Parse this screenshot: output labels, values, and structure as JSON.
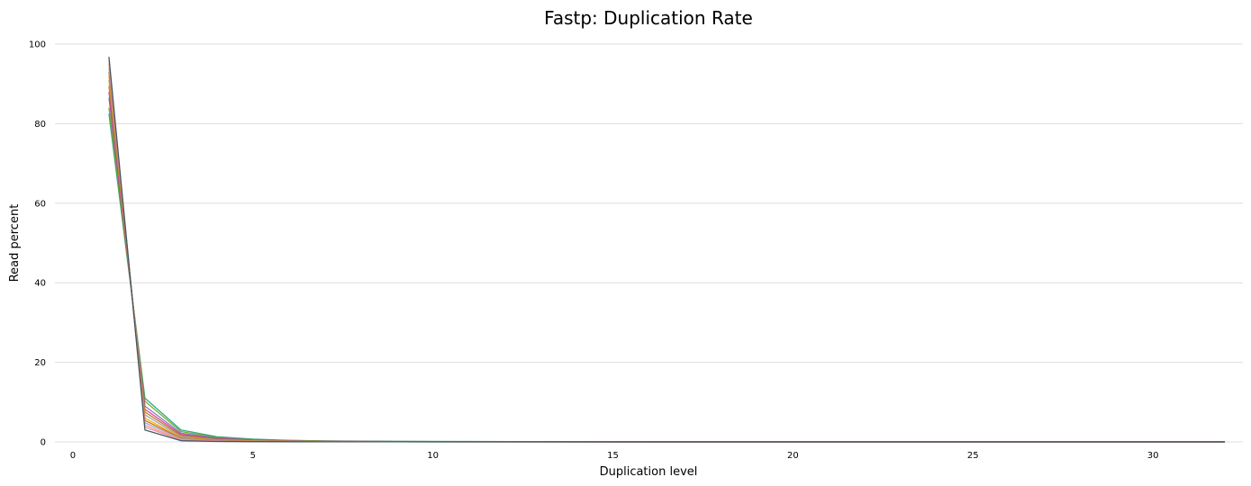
{
  "chart_data": {
    "type": "line",
    "title": "Fastp: Duplication Rate",
    "xlabel": "Duplication level",
    "ylabel": "Read percent",
    "xlim": [
      -0.5,
      32.5
    ],
    "ylim": [
      0,
      100
    ],
    "xticks": [
      0,
      5,
      10,
      15,
      20,
      25,
      30
    ],
    "yticks": [
      0,
      20,
      40,
      60,
      80,
      100
    ],
    "grid": "horizontal",
    "legend": "none",
    "x": [
      1,
      2,
      3,
      4,
      5,
      6,
      7,
      8,
      9,
      10,
      11,
      12,
      13,
      14,
      15,
      16,
      17,
      18,
      19,
      20,
      21,
      22,
      23,
      24,
      25,
      26,
      27,
      28,
      29,
      30,
      31,
      32
    ],
    "series": [
      {
        "color": "#1b9e77",
        "values": [
          82.5,
          11.0,
          3.0,
          1.3,
          0.7,
          0.4,
          0.25,
          0.18,
          0.14,
          0.12,
          0.1,
          0.08,
          0.06,
          0.04,
          0.03,
          0.02,
          0.02,
          0.01,
          0.01,
          0.01,
          0.01,
          0.01,
          0.01,
          0.01,
          0.01,
          0.01,
          0.01,
          0.01,
          0.01,
          0.01,
          0.01,
          0.01
        ]
      },
      {
        "color": "#66a61e",
        "values": [
          84.0,
          10.2,
          2.6,
          1.1,
          0.6,
          0.35,
          0.22,
          0.16,
          0.12,
          0.1,
          0.08,
          0.07,
          0.05,
          0.03,
          0.02,
          0.02,
          0.01,
          0.01,
          0.01,
          0.01,
          0.01,
          0.01,
          0.01,
          0.01,
          0.01,
          0.01,
          0.01,
          0.01,
          0.01,
          0.01,
          0.01,
          0.01
        ]
      },
      {
        "color": "#7570b3",
        "values": [
          86.5,
          9.0,
          2.2,
          0.95,
          0.5,
          0.3,
          0.18,
          0.13,
          0.1,
          0.08,
          0.07,
          0.06,
          0.04,
          0.03,
          0.02,
          0.01,
          0.01,
          0.01,
          0.01,
          0.01,
          0.01,
          0.01,
          0.01,
          0.01,
          0.01,
          0.01,
          0.01,
          0.01,
          0.01,
          0.01,
          0.01,
          0.01
        ]
      },
      {
        "color": "#e7298a",
        "values": [
          88.0,
          8.2,
          1.9,
          0.8,
          0.42,
          0.25,
          0.15,
          0.11,
          0.08,
          0.07,
          0.06,
          0.05,
          0.03,
          0.02,
          0.02,
          0.01,
          0.01,
          0.01,
          0.01,
          0.01,
          0.01,
          0.01,
          0.01,
          0.01,
          0.01,
          0.01,
          0.01,
          0.01,
          0.01,
          0.01,
          0.01,
          0.01
        ]
      },
      {
        "color": "#a6761d",
        "values": [
          89.5,
          7.5,
          1.6,
          0.7,
          0.36,
          0.22,
          0.13,
          0.09,
          0.07,
          0.06,
          0.05,
          0.04,
          0.03,
          0.02,
          0.01,
          0.01,
          0.01,
          0.01,
          0.01,
          0.01,
          0.01,
          0.01,
          0.01,
          0.01,
          0.01,
          0.01,
          0.01,
          0.01,
          0.01,
          0.01,
          0.01,
          0.01
        ]
      },
      {
        "color": "#999999",
        "values": [
          91.0,
          6.8,
          1.3,
          0.55,
          0.3,
          0.18,
          0.11,
          0.08,
          0.06,
          0.05,
          0.04,
          0.03,
          0.02,
          0.02,
          0.01,
          0.01,
          0.01,
          0.01,
          0.01,
          0.01,
          0.01,
          0.01,
          0.01,
          0.01,
          0.01,
          0.01,
          0.01,
          0.01,
          0.01,
          0.01,
          0.01,
          0.01
        ]
      },
      {
        "color": "#e6ab02",
        "values": [
          92.0,
          6.0,
          1.1,
          0.45,
          0.25,
          0.15,
          0.09,
          0.07,
          0.05,
          0.04,
          0.03,
          0.03,
          0.02,
          0.01,
          0.01,
          0.01,
          0.01,
          0.01,
          0.01,
          0.01,
          0.01,
          0.01,
          0.01,
          0.01,
          0.01,
          0.01,
          0.01,
          0.01,
          0.01,
          0.01,
          0.01,
          0.01
        ]
      },
      {
        "color": "#d95f02",
        "values": [
          93.0,
          5.4,
          0.95,
          0.38,
          0.2,
          0.12,
          0.08,
          0.06,
          0.04,
          0.03,
          0.03,
          0.02,
          0.02,
          0.01,
          0.01,
          0.01,
          0.01,
          0.01,
          0.01,
          0.01,
          0.01,
          0.01,
          0.01,
          0.01,
          0.01,
          0.01,
          0.01,
          0.01,
          0.01,
          0.01,
          0.01,
          0.01
        ]
      },
      {
        "color": "#8da0cb",
        "values": [
          94.0,
          4.8,
          0.8,
          0.3,
          0.16,
          0.1,
          0.06,
          0.05,
          0.04,
          0.03,
          0.02,
          0.02,
          0.01,
          0.01,
          0.01,
          0.01,
          0.01,
          0.01,
          0.01,
          0.01,
          0.01,
          0.01,
          0.01,
          0.01,
          0.01,
          0.01,
          0.01,
          0.01,
          0.01,
          0.01,
          0.01,
          0.01
        ]
      },
      {
        "color": "#fc8d62",
        "values": [
          95.0,
          4.2,
          0.6,
          0.22,
          0.12,
          0.07,
          0.05,
          0.04,
          0.03,
          0.02,
          0.02,
          0.01,
          0.01,
          0.01,
          0.01,
          0.01,
          0.01,
          0.01,
          0.01,
          0.01,
          0.01,
          0.01,
          0.01,
          0.01,
          0.01,
          0.01,
          0.01,
          0.01,
          0.01,
          0.01,
          0.01,
          0.01
        ]
      },
      {
        "color": "#e78ac3",
        "values": [
          95.8,
          3.7,
          0.45,
          0.18,
          0.1,
          0.06,
          0.04,
          0.03,
          0.02,
          0.02,
          0.01,
          0.01,
          0.01,
          0.01,
          0.01,
          0.01,
          0.01,
          0.01,
          0.01,
          0.01,
          0.01,
          0.01,
          0.01,
          0.01,
          0.01,
          0.01,
          0.01,
          0.01,
          0.01,
          0.01,
          0.01,
          0.01
        ]
      },
      {
        "color": "#2f4f4f",
        "values": [
          96.8,
          3.0,
          0.3,
          0.12,
          0.07,
          0.04,
          0.03,
          0.02,
          0.02,
          0.01,
          0.01,
          0.01,
          0.01,
          0.01,
          0.01,
          0.01,
          0.01,
          0.01,
          0.01,
          0.01,
          0.01,
          0.01,
          0.01,
          0.01,
          0.01,
          0.01,
          0.01,
          0.01,
          0.01,
          0.01,
          0.01,
          0.01
        ]
      }
    ]
  }
}
